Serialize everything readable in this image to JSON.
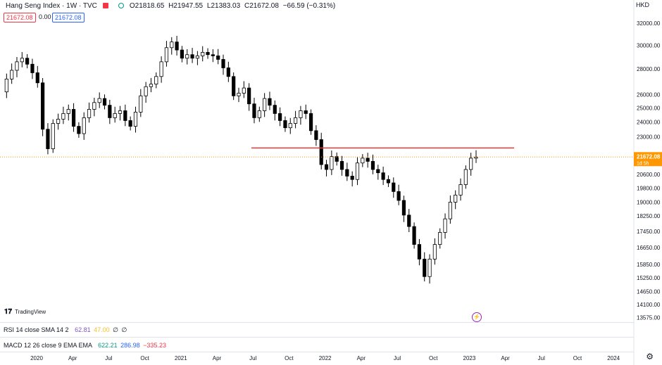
{
  "header": {
    "symbol": "Hang Seng Index · 1W · TVC",
    "o_label": "O",
    "o_value": "21818.65",
    "h_label": "H",
    "h_value": "21947.55",
    "l_label": "L",
    "l_value": "21383.03",
    "c_label": "C",
    "c_value": "21672.08",
    "change": "−66.59 (−0.31%)",
    "sell_price": "21672.08",
    "spread": "0.00",
    "buy_price": "21672.08",
    "currency": "HKD"
  },
  "watermark": "TradingView",
  "indicators": {
    "rsi_label": "RSI 14 close SMA 14 2",
    "rsi_val1": "62.81",
    "rsi_val2": "47.00",
    "rsi_val3": "∅",
    "rsi_val4": "∅",
    "macd_label": "MACD 12 26 close 9 EMA EMA",
    "macd_val1": "622.21",
    "macd_val2": "286.98",
    "macd_val3": "−335.23"
  },
  "colors": {
    "bull": "#ffffff",
    "bear": "#000000",
    "resistance_line": "#e53935",
    "price_line": "#ff9800",
    "price_tag": "#ff9800",
    "rsi_val1": "#7e57c2",
    "rsi_val2": "#fbc02d",
    "macd_val1": "#089981",
    "macd_val2": "#2962ff",
    "macd_val3": "#f23645"
  },
  "chart_data": {
    "type": "candlestick",
    "title": "Hang Seng Index · 1W · TVC",
    "y_scale": "log",
    "ylim": [
      13400,
      33000
    ],
    "y_ticks": [
      13575,
      14100,
      14650,
      15250,
      15850,
      16650,
      17450,
      18250,
      19000,
      19800,
      20600,
      21600,
      23000,
      24000,
      25000,
      26000,
      28000,
      30000,
      32000
    ],
    "y_tick_labels": [
      "13575.00",
      "14100.00",
      "14650.00",
      "15250.00",
      "15850.00",
      "16650.00",
      "17450.00",
      "18250.00",
      "19000.00",
      "19800.00",
      "20600.00",
      "21600.00",
      "23000.00",
      "24000.00",
      "25000.00",
      "26000.00",
      "28000.00",
      "30000.00",
      "32000.00"
    ],
    "x_tick_labels": [
      "2020",
      "Apr",
      "Jul",
      "Oct",
      "2021",
      "Apr",
      "Jul",
      "Oct",
      "2022",
      "Apr",
      "Jul",
      "Oct",
      "2023",
      "Apr",
      "Jul",
      "Oct",
      "2024"
    ],
    "last_price": "21672.08",
    "last_price_countdown": "1d 5h",
    "resistance_level": 22250,
    "price_path": [
      26200,
      27200,
      27900,
      28600,
      28900,
      28400,
      27700,
      26900,
      23500,
      22200,
      23900,
      24200,
      24600,
      24900,
      23700,
      23200,
      24300,
      24900,
      25400,
      25700,
      25200,
      24300,
      24600,
      24800,
      24100,
      23700,
      24700,
      25900,
      26600,
      26800,
      27400,
      28600,
      29800,
      30300,
      29600,
      28900,
      29200,
      28900,
      29100,
      29400,
      29200,
      29100,
      28800,
      28100,
      27400,
      25900,
      26100,
      26500,
      25300,
      24300,
      24800,
      25700,
      25200,
      24600,
      24100,
      23600,
      23900,
      24300,
      24800,
      24600,
      23400,
      22800,
      21200,
      20900,
      21700,
      21400,
      20900,
      20500,
      20300,
      21300,
      21600,
      21400,
      20900,
      20700,
      20300,
      20100,
      19600,
      19100,
      18300,
      17700,
      16800,
      16100,
      15300,
      16100,
      16800,
      17400,
      18100,
      19000,
      19400,
      20000,
      20900,
      21600,
      21672
    ]
  }
}
